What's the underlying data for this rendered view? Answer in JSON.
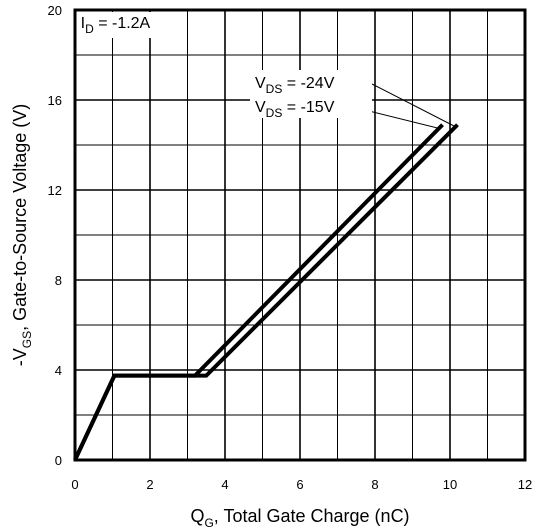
{
  "chart_data": {
    "type": "line",
    "title": "",
    "xlabel": {
      "main": "Q",
      "sub": "G",
      "rest": ", Total Gate Charge (nC)"
    },
    "ylabel": {
      "main": "-V",
      "sub": "GS",
      "rest": ", Gate-to-Source Voltage (V)"
    },
    "xlim": [
      0,
      12
    ],
    "ylim": [
      0,
      20
    ],
    "xticks": [
      0,
      2,
      4,
      6,
      8,
      10,
      12
    ],
    "yticks": [
      0,
      4,
      8,
      12,
      16,
      20
    ],
    "xtick_labels": [
      "0",
      "2",
      "4",
      "6",
      "8",
      "10",
      "12"
    ],
    "ytick_labels": [
      "0",
      "4",
      "8",
      "12",
      "16",
      "20"
    ],
    "grid": true,
    "grid_x_step": 1,
    "grid_y_step": 2,
    "condition": {
      "main": "I",
      "sub": "D",
      "rest": " = -1.2A"
    },
    "series": [
      {
        "name": {
          "main": "V",
          "sub": "DS",
          "rest": " = -24V"
        },
        "x": [
          0,
          1.05,
          3.5,
          10.2
        ],
        "y": [
          0,
          3.75,
          3.75,
          14.9
        ]
      },
      {
        "name": {
          "main": "V",
          "sub": "DS",
          "rest": " = -15V"
        },
        "x": [
          0,
          1.05,
          3.2,
          9.8
        ],
        "y": [
          0,
          3.75,
          3.75,
          14.9
        ]
      }
    ]
  }
}
